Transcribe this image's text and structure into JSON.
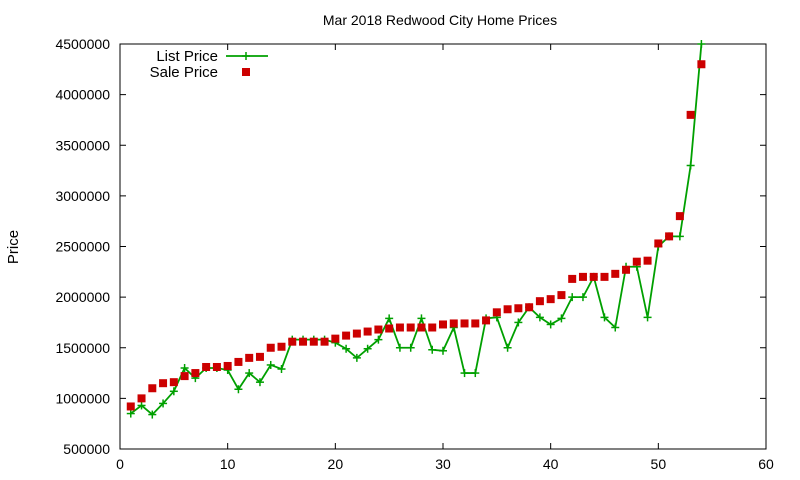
{
  "chart_data": {
    "type": "line",
    "title": "Mar 2018 Redwood City Home Prices",
    "xlabel": "",
    "ylabel": "Price",
    "xlim": [
      0,
      60
    ],
    "ylim": [
      500000,
      4500000
    ],
    "x_ticks": [
      0,
      10,
      20,
      30,
      40,
      50,
      60
    ],
    "y_ticks": [
      500000,
      1000000,
      1500000,
      2000000,
      2500000,
      3000000,
      3500000,
      4000000,
      4500000
    ],
    "grid": false,
    "legend_position": "top-left",
    "series": [
      {
        "name": "List Price",
        "style": "line-with-plus",
        "color": "#00a000",
        "x": [
          1,
          2,
          3,
          4,
          5,
          6,
          7,
          8,
          9,
          10,
          11,
          12,
          13,
          14,
          15,
          16,
          17,
          18,
          19,
          20,
          21,
          22,
          23,
          24,
          25,
          26,
          27,
          28,
          29,
          30,
          31,
          32,
          33,
          34,
          35,
          36,
          37,
          38,
          39,
          40,
          41,
          42,
          43,
          44,
          45,
          46,
          47,
          48,
          49,
          50,
          51,
          52,
          53,
          54
        ],
        "y": [
          850000,
          930000,
          840000,
          950000,
          1070000,
          1300000,
          1200000,
          1300000,
          1300000,
          1280000,
          1090000,
          1250000,
          1160000,
          1330000,
          1290000,
          1580000,
          1580000,
          1580000,
          1580000,
          1550000,
          1490000,
          1400000,
          1490000,
          1580000,
          1790000,
          1500000,
          1500000,
          1790000,
          1480000,
          1470000,
          1700000,
          1250000,
          1250000,
          1790000,
          1800000,
          1500000,
          1750000,
          1900000,
          1800000,
          1730000,
          1790000,
          2000000,
          2000000,
          2200000,
          1800000,
          1700000,
          2300000,
          2300000,
          1800000,
          2500000,
          2600000,
          2600000,
          3300000,
          4500000
        ]
      },
      {
        "name": "Sale Price",
        "style": "square-markers",
        "color": "#cc0000",
        "x": [
          1,
          2,
          3,
          4,
          5,
          6,
          7,
          8,
          9,
          10,
          11,
          12,
          13,
          14,
          15,
          16,
          17,
          18,
          19,
          20,
          21,
          22,
          23,
          24,
          25,
          26,
          27,
          28,
          29,
          30,
          31,
          32,
          33,
          34,
          35,
          36,
          37,
          38,
          39,
          40,
          41,
          42,
          43,
          44,
          45,
          46,
          47,
          48,
          49,
          50,
          51,
          52,
          53,
          54
        ],
        "y": [
          920000,
          1000000,
          1100000,
          1150000,
          1160000,
          1220000,
          1250000,
          1310000,
          1310000,
          1320000,
          1360000,
          1400000,
          1410000,
          1500000,
          1510000,
          1560000,
          1560000,
          1560000,
          1560000,
          1590000,
          1620000,
          1640000,
          1660000,
          1680000,
          1690000,
          1700000,
          1700000,
          1700000,
          1700000,
          1730000,
          1740000,
          1740000,
          1740000,
          1770000,
          1850000,
          1880000,
          1890000,
          1900000,
          1960000,
          1980000,
          2020000,
          2180000,
          2200000,
          2200000,
          2200000,
          2230000,
          2270000,
          2350000,
          2360000,
          2530000,
          2600000,
          2800000,
          3800000,
          4300000
        ]
      }
    ]
  }
}
